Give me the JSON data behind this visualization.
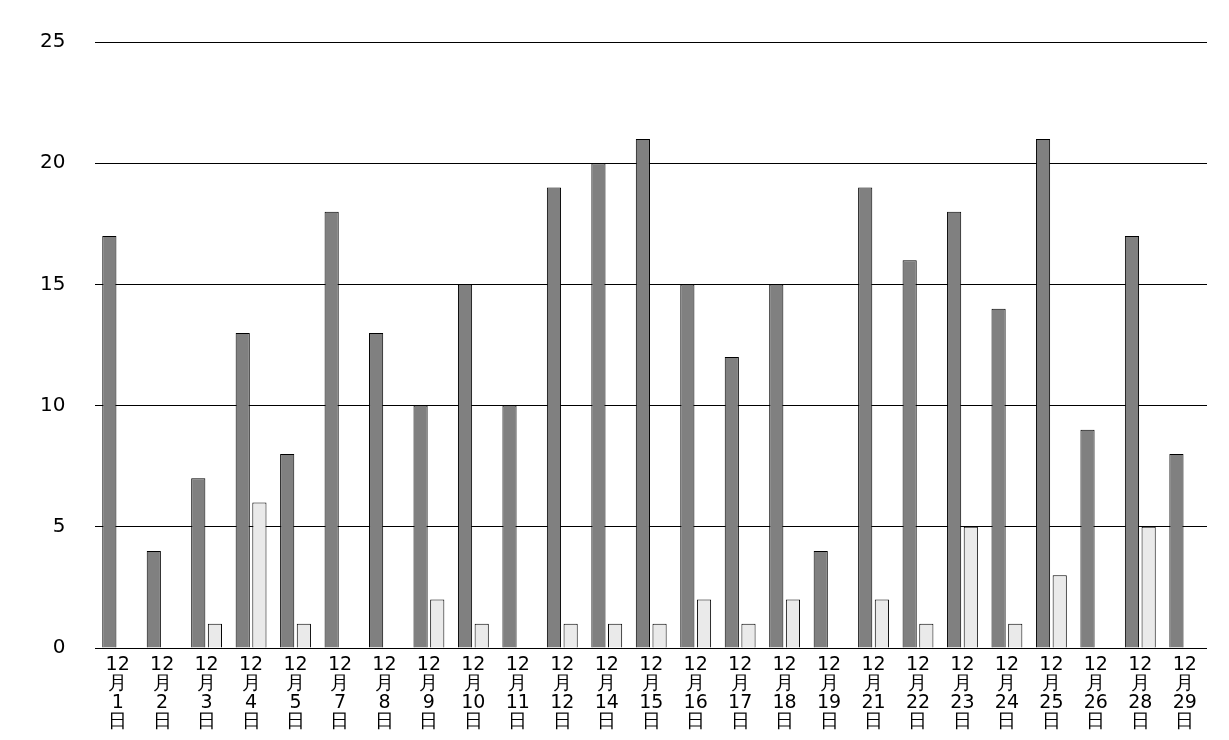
{
  "chart_data": {
    "type": "bar",
    "categories": [
      "12月1日",
      "12月2日",
      "12月3日",
      "12月4日",
      "12月5日",
      "12月7日",
      "12月8日",
      "12月9日",
      "12月10日",
      "12月11日",
      "12月12日",
      "12月14日",
      "12月15日",
      "12月16日",
      "12月17日",
      "12月18日",
      "12月19日",
      "12月21日",
      "12月22日",
      "12月23日",
      "12月24日",
      "12月25日",
      "12月26日",
      "12月28日",
      "12月29日"
    ],
    "series": [
      {
        "color": "#808080",
        "values": [
          17,
          4,
          7,
          13,
          8,
          18,
          13,
          10,
          15,
          10,
          19,
          20,
          21,
          15,
          12,
          15,
          4,
          19,
          16,
          18,
          14,
          21,
          9,
          17,
          8
        ]
      },
      {
        "color": "#eaeaea",
        "values": [
          0,
          0,
          1,
          6,
          1,
          0,
          0,
          2,
          1,
          0,
          1,
          1,
          1,
          2,
          1,
          2,
          0,
          2,
          1,
          5,
          1,
          3,
          0,
          5,
          0
        ]
      }
    ],
    "ylim": [
      0,
      25
    ],
    "yticks": [
      0,
      5,
      10,
      15,
      20,
      25
    ],
    "grid": "y",
    "legend": false
  }
}
